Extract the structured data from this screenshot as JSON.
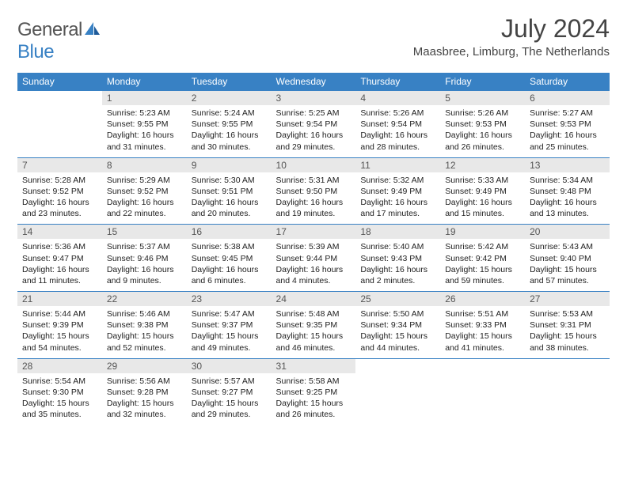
{
  "logo": {
    "general": "General",
    "blue": "Blue"
  },
  "title": "July 2024",
  "location": "Maasbree, Limburg, The Netherlands",
  "colors": {
    "header_bg": "#3881c4",
    "header_text": "#ffffff",
    "daynum_bg": "#e8e8e8",
    "body_text": "#222222",
    "title_text": "#444444"
  },
  "dayHeaders": [
    "Sunday",
    "Monday",
    "Tuesday",
    "Wednesday",
    "Thursday",
    "Friday",
    "Saturday"
  ],
  "weeks": [
    [
      null,
      {
        "n": "1",
        "sr": "Sunrise: 5:23 AM",
        "ss": "Sunset: 9:55 PM",
        "dl": "Daylight: 16 hours and 31 minutes."
      },
      {
        "n": "2",
        "sr": "Sunrise: 5:24 AM",
        "ss": "Sunset: 9:55 PM",
        "dl": "Daylight: 16 hours and 30 minutes."
      },
      {
        "n": "3",
        "sr": "Sunrise: 5:25 AM",
        "ss": "Sunset: 9:54 PM",
        "dl": "Daylight: 16 hours and 29 minutes."
      },
      {
        "n": "4",
        "sr": "Sunrise: 5:26 AM",
        "ss": "Sunset: 9:54 PM",
        "dl": "Daylight: 16 hours and 28 minutes."
      },
      {
        "n": "5",
        "sr": "Sunrise: 5:26 AM",
        "ss": "Sunset: 9:53 PM",
        "dl": "Daylight: 16 hours and 26 minutes."
      },
      {
        "n": "6",
        "sr": "Sunrise: 5:27 AM",
        "ss": "Sunset: 9:53 PM",
        "dl": "Daylight: 16 hours and 25 minutes."
      }
    ],
    [
      {
        "n": "7",
        "sr": "Sunrise: 5:28 AM",
        "ss": "Sunset: 9:52 PM",
        "dl": "Daylight: 16 hours and 23 minutes."
      },
      {
        "n": "8",
        "sr": "Sunrise: 5:29 AM",
        "ss": "Sunset: 9:52 PM",
        "dl": "Daylight: 16 hours and 22 minutes."
      },
      {
        "n": "9",
        "sr": "Sunrise: 5:30 AM",
        "ss": "Sunset: 9:51 PM",
        "dl": "Daylight: 16 hours and 20 minutes."
      },
      {
        "n": "10",
        "sr": "Sunrise: 5:31 AM",
        "ss": "Sunset: 9:50 PM",
        "dl": "Daylight: 16 hours and 19 minutes."
      },
      {
        "n": "11",
        "sr": "Sunrise: 5:32 AM",
        "ss": "Sunset: 9:49 PM",
        "dl": "Daylight: 16 hours and 17 minutes."
      },
      {
        "n": "12",
        "sr": "Sunrise: 5:33 AM",
        "ss": "Sunset: 9:49 PM",
        "dl": "Daylight: 16 hours and 15 minutes."
      },
      {
        "n": "13",
        "sr": "Sunrise: 5:34 AM",
        "ss": "Sunset: 9:48 PM",
        "dl": "Daylight: 16 hours and 13 minutes."
      }
    ],
    [
      {
        "n": "14",
        "sr": "Sunrise: 5:36 AM",
        "ss": "Sunset: 9:47 PM",
        "dl": "Daylight: 16 hours and 11 minutes."
      },
      {
        "n": "15",
        "sr": "Sunrise: 5:37 AM",
        "ss": "Sunset: 9:46 PM",
        "dl": "Daylight: 16 hours and 9 minutes."
      },
      {
        "n": "16",
        "sr": "Sunrise: 5:38 AM",
        "ss": "Sunset: 9:45 PM",
        "dl": "Daylight: 16 hours and 6 minutes."
      },
      {
        "n": "17",
        "sr": "Sunrise: 5:39 AM",
        "ss": "Sunset: 9:44 PM",
        "dl": "Daylight: 16 hours and 4 minutes."
      },
      {
        "n": "18",
        "sr": "Sunrise: 5:40 AM",
        "ss": "Sunset: 9:43 PM",
        "dl": "Daylight: 16 hours and 2 minutes."
      },
      {
        "n": "19",
        "sr": "Sunrise: 5:42 AM",
        "ss": "Sunset: 9:42 PM",
        "dl": "Daylight: 15 hours and 59 minutes."
      },
      {
        "n": "20",
        "sr": "Sunrise: 5:43 AM",
        "ss": "Sunset: 9:40 PM",
        "dl": "Daylight: 15 hours and 57 minutes."
      }
    ],
    [
      {
        "n": "21",
        "sr": "Sunrise: 5:44 AM",
        "ss": "Sunset: 9:39 PM",
        "dl": "Daylight: 15 hours and 54 minutes."
      },
      {
        "n": "22",
        "sr": "Sunrise: 5:46 AM",
        "ss": "Sunset: 9:38 PM",
        "dl": "Daylight: 15 hours and 52 minutes."
      },
      {
        "n": "23",
        "sr": "Sunrise: 5:47 AM",
        "ss": "Sunset: 9:37 PM",
        "dl": "Daylight: 15 hours and 49 minutes."
      },
      {
        "n": "24",
        "sr": "Sunrise: 5:48 AM",
        "ss": "Sunset: 9:35 PM",
        "dl": "Daylight: 15 hours and 46 minutes."
      },
      {
        "n": "25",
        "sr": "Sunrise: 5:50 AM",
        "ss": "Sunset: 9:34 PM",
        "dl": "Daylight: 15 hours and 44 minutes."
      },
      {
        "n": "26",
        "sr": "Sunrise: 5:51 AM",
        "ss": "Sunset: 9:33 PM",
        "dl": "Daylight: 15 hours and 41 minutes."
      },
      {
        "n": "27",
        "sr": "Sunrise: 5:53 AM",
        "ss": "Sunset: 9:31 PM",
        "dl": "Daylight: 15 hours and 38 minutes."
      }
    ],
    [
      {
        "n": "28",
        "sr": "Sunrise: 5:54 AM",
        "ss": "Sunset: 9:30 PM",
        "dl": "Daylight: 15 hours and 35 minutes."
      },
      {
        "n": "29",
        "sr": "Sunrise: 5:56 AM",
        "ss": "Sunset: 9:28 PM",
        "dl": "Daylight: 15 hours and 32 minutes."
      },
      {
        "n": "30",
        "sr": "Sunrise: 5:57 AM",
        "ss": "Sunset: 9:27 PM",
        "dl": "Daylight: 15 hours and 29 minutes."
      },
      {
        "n": "31",
        "sr": "Sunrise: 5:58 AM",
        "ss": "Sunset: 9:25 PM",
        "dl": "Daylight: 15 hours and 26 minutes."
      },
      null,
      null,
      null
    ]
  ]
}
